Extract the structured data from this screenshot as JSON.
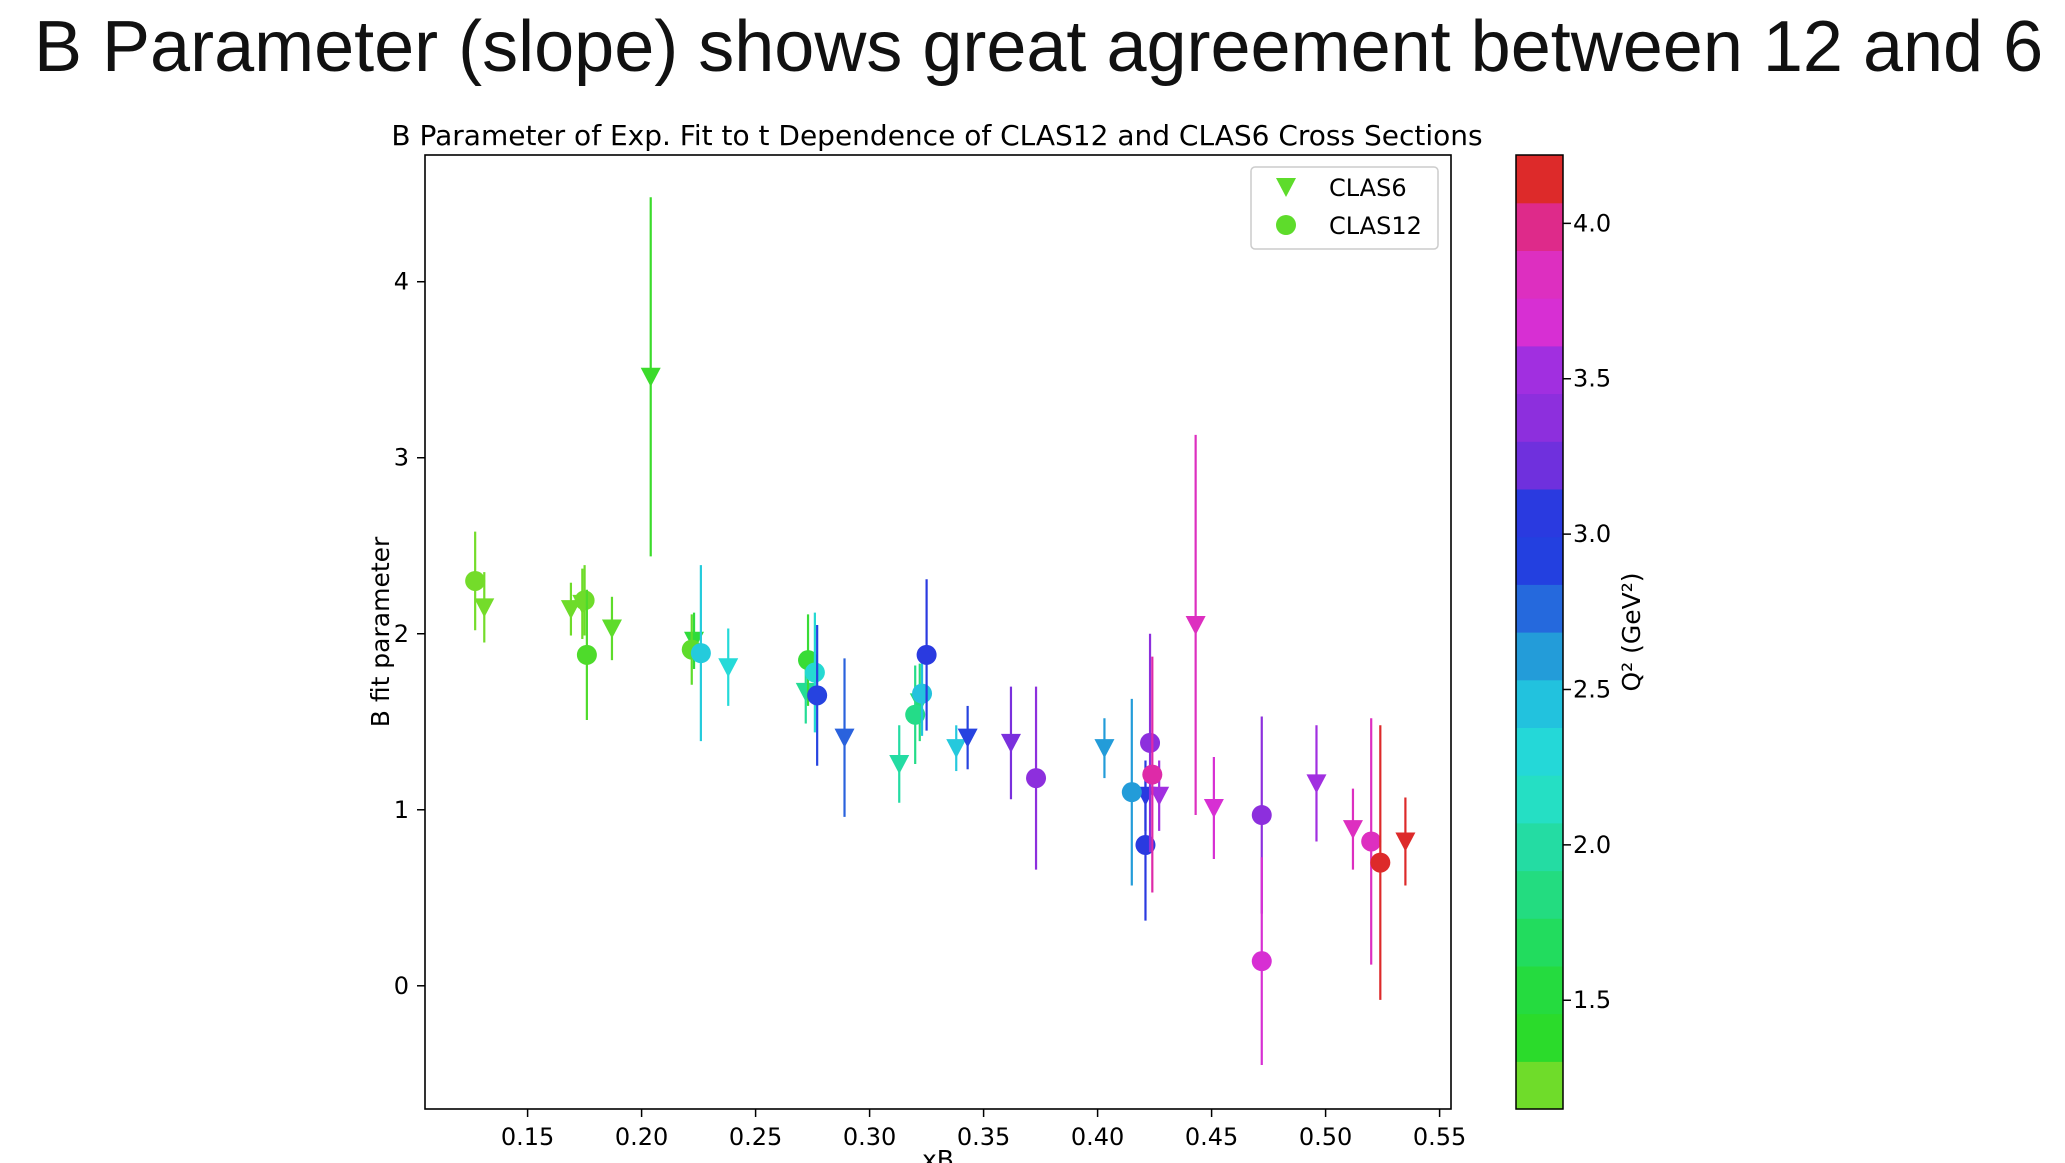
{
  "slide": {
    "title": "B Parameter (slope) shows great agreement between 12 and 6"
  },
  "chart_data": {
    "type": "scatter",
    "title": "B Parameter of Exp. Fit to t Dependence of CLAS12 and CLAS6 Cross Sections",
    "xlabel": "xB",
    "ylabel": "B fit parameter",
    "xlim": [
      0.105,
      0.555
    ],
    "ylim": [
      -0.7,
      4.72
    ],
    "x_ticks": [
      "0.15",
      "0.20",
      "0.25",
      "0.30",
      "0.35",
      "0.40",
      "0.45",
      "0.50",
      "0.55"
    ],
    "y_ticks": [
      "0",
      "1",
      "2",
      "3",
      "4"
    ],
    "legend_position": "top-right",
    "colorbar": {
      "label": "Q² (GeV²)",
      "range": [
        1.15,
        4.22
      ],
      "ticks": [
        "1.5",
        "2.0",
        "2.5",
        "3.0",
        "3.5",
        "4.0"
      ],
      "colors": [
        "#6fdc2a",
        "#2bdb2b",
        "#25db3f",
        "#22dc5e",
        "#23dc80",
        "#24dca3",
        "#25dfc4",
        "#24d8d8",
        "#22c2de",
        "#239cd9",
        "#2569dd",
        "#2340e0",
        "#2a3ae0",
        "#6f30dd",
        "#8d2fdd",
        "#a12fe0",
        "#d72fd3",
        "#dd2fc0",
        "#de2a8a",
        "#dd2a2a"
      ]
    },
    "series": [
      {
        "name": "CLAS6",
        "marker": "triangle-down",
        "points": [
          {
            "x": 0.131,
            "y": 2.15,
            "err": 0.2,
            "color": "#74dc2a"
          },
          {
            "x": 0.169,
            "y": 2.14,
            "err": 0.15,
            "color": "#6edc2a"
          },
          {
            "x": 0.174,
            "y": 2.17,
            "err": 0.2,
            "color": "#6edc2a"
          },
          {
            "x": 0.187,
            "y": 2.03,
            "err": 0.18,
            "color": "#5edc2b"
          },
          {
            "x": 0.204,
            "y": 3.46,
            "err": 1.02,
            "color": "#3bdb2b"
          },
          {
            "x": 0.223,
            "y": 1.96,
            "err": 0.16,
            "color": "#2fdb3b"
          },
          {
            "x": 0.238,
            "y": 1.81,
            "err": 0.22,
            "color": "#25dad8"
          },
          {
            "x": 0.272,
            "y": 1.67,
            "err": 0.18,
            "color": "#24dc95"
          },
          {
            "x": 0.289,
            "y": 1.41,
            "err": 0.45,
            "color": "#2a62dd"
          },
          {
            "x": 0.313,
            "y": 1.26,
            "err": 0.22,
            "color": "#24dca3"
          },
          {
            "x": 0.322,
            "y": 1.61,
            "err": 0.22,
            "color": "#23dc7a"
          },
          {
            "x": 0.338,
            "y": 1.35,
            "err": 0.13,
            "color": "#25c9dd"
          },
          {
            "x": 0.343,
            "y": 1.41,
            "err": 0.18,
            "color": "#2643e0"
          },
          {
            "x": 0.362,
            "y": 1.38,
            "err": 0.32,
            "color": "#7a30dd"
          },
          {
            "x": 0.403,
            "y": 1.35,
            "err": 0.17,
            "color": "#239cd9"
          },
          {
            "x": 0.421,
            "y": 1.08,
            "err": 0.2,
            "color": "#2a3ae0"
          },
          {
            "x": 0.427,
            "y": 1.08,
            "err": 0.2,
            "color": "#a12fe0"
          },
          {
            "x": 0.443,
            "y": 2.05,
            "err": 1.08,
            "color": "#dd2fc0"
          },
          {
            "x": 0.451,
            "y": 1.01,
            "err": 0.29,
            "color": "#d72fd3"
          },
          {
            "x": 0.496,
            "y": 1.15,
            "err": 0.33,
            "color": "#a12fe0"
          },
          {
            "x": 0.512,
            "y": 0.89,
            "err": 0.23,
            "color": "#dd2fc0"
          },
          {
            "x": 0.535,
            "y": 0.82,
            "err": 0.25,
            "color": "#dd2a2a"
          }
        ]
      },
      {
        "name": "CLAS12",
        "marker": "circle",
        "points": [
          {
            "x": 0.127,
            "y": 2.3,
            "err": 0.28,
            "color": "#74dc2a"
          },
          {
            "x": 0.175,
            "y": 2.19,
            "err": 0.2,
            "color": "#6edc2a"
          },
          {
            "x": 0.176,
            "y": 1.88,
            "err": 0.37,
            "color": "#4edb2b"
          },
          {
            "x": 0.222,
            "y": 1.91,
            "err": 0.2,
            "color": "#5edc2b"
          },
          {
            "x": 0.226,
            "y": 1.89,
            "err": 0.5,
            "color": "#24cbdc"
          },
          {
            "x": 0.273,
            "y": 1.85,
            "err": 0.26,
            "color": "#38dc36"
          },
          {
            "x": 0.276,
            "y": 1.78,
            "err": 0.34,
            "color": "#25d9d2"
          },
          {
            "x": 0.277,
            "y": 1.65,
            "err": 0.4,
            "color": "#2643e0"
          },
          {
            "x": 0.32,
            "y": 1.54,
            "err": 0.28,
            "color": "#24dc88"
          },
          {
            "x": 0.323,
            "y": 1.66,
            "err": 0.24,
            "color": "#24c2dd"
          },
          {
            "x": 0.325,
            "y": 1.88,
            "err": 0.43,
            "color": "#2a3ae0"
          },
          {
            "x": 0.373,
            "y": 1.18,
            "err": 0.52,
            "color": "#8d2fdd"
          },
          {
            "x": 0.415,
            "y": 1.1,
            "err": 0.53,
            "color": "#239cd9"
          },
          {
            "x": 0.421,
            "y": 0.8,
            "err": 0.43,
            "color": "#2a3ae0"
          },
          {
            "x": 0.423,
            "y": 1.38,
            "err": 0.62,
            "color": "#8d2fdd"
          },
          {
            "x": 0.424,
            "y": 1.2,
            "err": 0.67,
            "color": "#de2aa8"
          },
          {
            "x": 0.472,
            "y": 0.97,
            "err": 0.56,
            "color": "#8d2fdd"
          },
          {
            "x": 0.472,
            "y": 0.14,
            "err": 0.59,
            "color": "#d72fd3"
          },
          {
            "x": 0.52,
            "y": 0.82,
            "err": 0.7,
            "color": "#dd2fc0"
          },
          {
            "x": 0.524,
            "y": 0.7,
            "err": 0.78,
            "color": "#dd2a2a"
          }
        ]
      }
    ]
  }
}
